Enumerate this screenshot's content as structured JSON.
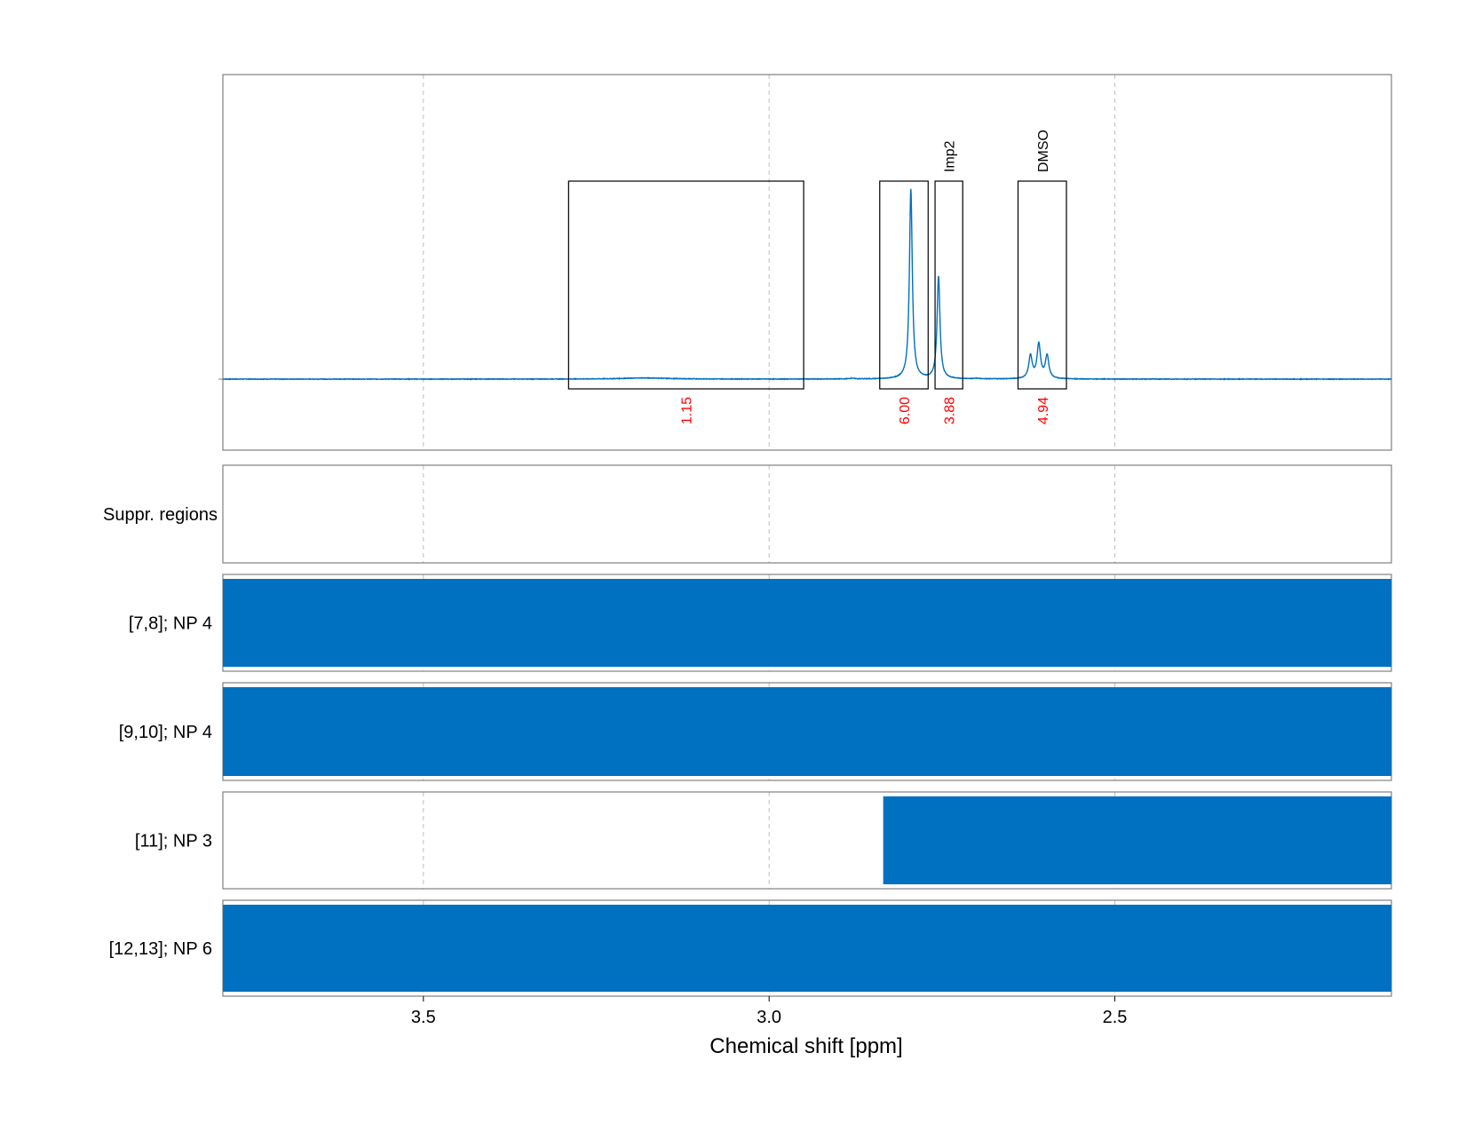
{
  "chart_data": {
    "type": "line",
    "xlabel": "Chemical shift [ppm]",
    "x_axis": {
      "min": 2.1,
      "max": 3.79,
      "reversed": true,
      "ticks": [
        3.5,
        3.0,
        2.5
      ],
      "tick_labels": [
        "3.5",
        "3.0",
        "2.5"
      ],
      "grid": true
    },
    "colors": {
      "spectrum": "#0070c0",
      "integral_label": "#ff0000",
      "frame": "#808080",
      "box": "#000000",
      "grid": "#bfbfbf"
    },
    "spectrum": {
      "baseline": 0,
      "ymax": 1.2,
      "peaks": [
        {
          "center": 2.795,
          "height": 1.0,
          "width": 0.0025
        },
        {
          "center": 2.755,
          "height": 0.54,
          "width": 0.0025
        },
        {
          "center": 2.598,
          "height": 0.12,
          "width": 0.003
        },
        {
          "center": 2.61,
          "height": 0.18,
          "width": 0.003
        },
        {
          "center": 2.622,
          "height": 0.12,
          "width": 0.003
        },
        {
          "center": 3.18,
          "height": 0.006,
          "width": 0.04
        },
        {
          "center": 2.88,
          "height": 0.004,
          "width": 0.004
        },
        {
          "center": 2.7,
          "height": 0.003,
          "width": 0.004
        }
      ]
    },
    "integral_regions": [
      {
        "from": 3.29,
        "to": 2.95,
        "integral": "1.15",
        "label": ""
      },
      {
        "from": 2.84,
        "to": 2.77,
        "integral": "6.00",
        "label": ""
      },
      {
        "from": 2.76,
        "to": 2.72,
        "integral": "3.88",
        "label": "Imp2"
      },
      {
        "from": 2.64,
        "to": 2.57,
        "integral": "4.94",
        "label": "DMSO"
      }
    ],
    "tracks": [
      {
        "label": "Suppr. regions",
        "regions": []
      },
      {
        "label": "[7,8]; NP 4",
        "regions": [
          [
            3.79,
            2.1
          ]
        ]
      },
      {
        "label": "[9,10]; NP 4",
        "regions": [
          [
            3.79,
            2.1
          ]
        ]
      },
      {
        "label": "[11]; NP 3",
        "regions": [
          [
            2.835,
            2.1
          ]
        ]
      },
      {
        "label": "[12,13]; NP 6",
        "regions": [
          [
            3.79,
            2.1
          ]
        ]
      }
    ]
  }
}
